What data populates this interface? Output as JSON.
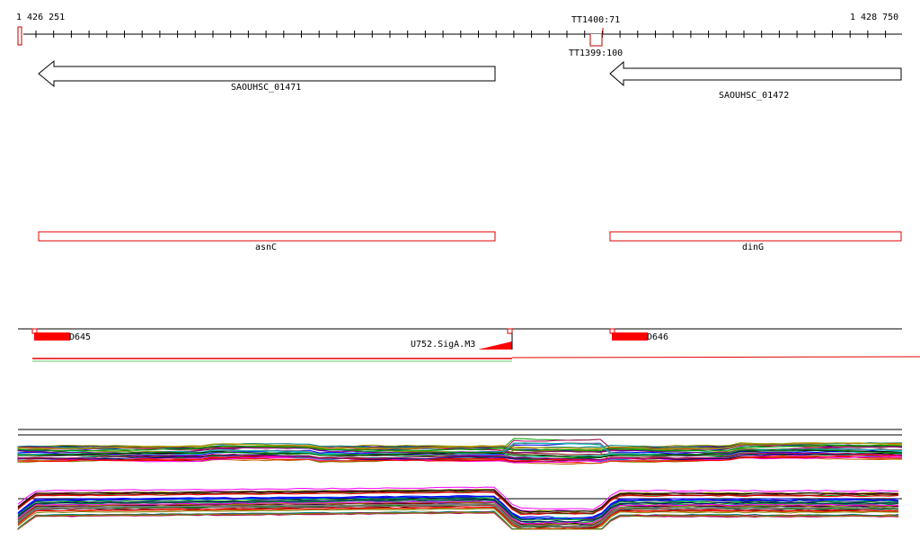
{
  "ruler": {
    "start_label": "1 426 251",
    "end_label": "1 428 750",
    "terminators": [
      {
        "label": "TT1400:71"
      },
      {
        "label": "TT1399:100"
      }
    ]
  },
  "genes": [
    {
      "label": "SAOUHSC_01471",
      "strand": "-"
    },
    {
      "label": "SAOUHSC_01472",
      "strand": "-"
    }
  ],
  "operons": [
    {
      "label": "asnC"
    },
    {
      "label": "dinG"
    }
  ],
  "features": [
    {
      "label": "D645"
    },
    {
      "label": "U752.SigA.M3"
    },
    {
      "label": "D646"
    }
  ],
  "colors": {
    "feature_red": "#ff0000",
    "outline_black": "#000000",
    "background": "#ffffff"
  },
  "expression_tracks": {
    "track_count": 2,
    "line_colors": [
      "#000000",
      "#008000",
      "#800000",
      "#ff00ff",
      "#0000ff",
      "#808000",
      "#ff0000",
      "#008080",
      "#800080",
      "#808080",
      "#00a000",
      "#c06000",
      "#000080",
      "#a0a000",
      "#00c0c0",
      "#c00060"
    ]
  }
}
